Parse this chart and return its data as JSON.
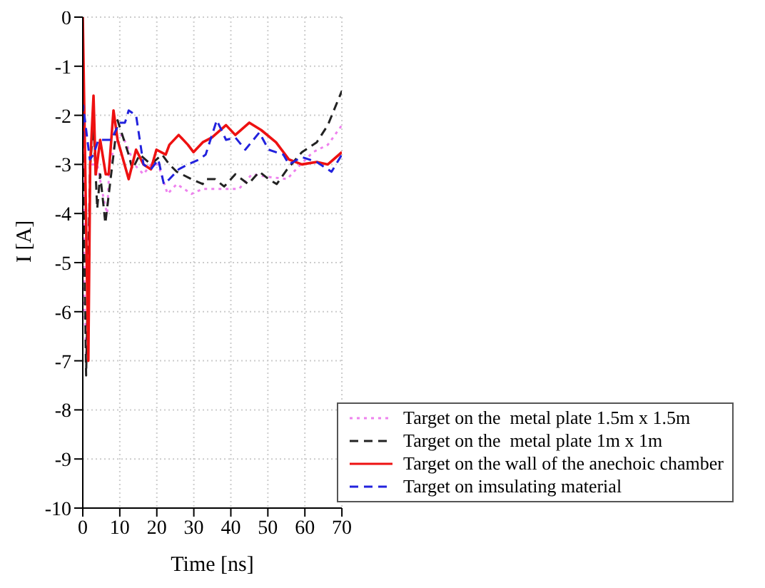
{
  "chart_data": {
    "type": "line",
    "xlabel": "Time [ns]",
    "ylabel": "I [A]",
    "xlim": [
      0,
      70
    ],
    "xticks": [
      0,
      10,
      20,
      30,
      40,
      50,
      60,
      70
    ],
    "ylim": [
      -10,
      0
    ],
    "yticks": [
      -10,
      -9,
      -8,
      -7,
      -6,
      -5,
      -4,
      -3,
      -2,
      -1,
      0
    ],
    "grid": true,
    "legend": "bottom right",
    "marker": "none",
    "series": [
      {
        "name": "Target on the  metal plate 1.5m x 1.5m",
        "color": "#ee82ee",
        "line_style": "dotted",
        "x": [
          0,
          0.5,
          1,
          2,
          3.9,
          5.9,
          6.6,
          7.2,
          8.7,
          10.4,
          11.9,
          13.9,
          16.4,
          18.4,
          20.4,
          22.9,
          25.4,
          29.4,
          32.4,
          34.9,
          36.2,
          42.2,
          45.7,
          49.7,
          55.2,
          58.2,
          62.2,
          66.2,
          70
        ],
        "values": [
          -1,
          -6,
          -7,
          -3,
          -3,
          -3.8,
          -4,
          -3,
          -2.6,
          -2.4,
          -2.6,
          -3,
          -3.2,
          -3,
          -3,
          -3.6,
          -3.4,
          -3.6,
          -3.5,
          -3.5,
          -3.5,
          -3.5,
          -3.2,
          -3.25,
          -3.3,
          -3.05,
          -2.75,
          -2.6,
          -2.2
        ]
      },
      {
        "name": "Target on the  metal plate 1m x 1m",
        "color": "#222222",
        "line_style": "dashed",
        "x": [
          0,
          0.9,
          2,
          2.9,
          3.9,
          4.7,
          6.1,
          7.2,
          9.4,
          12.4,
          13.4,
          15.4,
          18.4,
          21.4,
          23.4,
          25.4,
          29.4,
          32.4,
          33.2,
          35.7,
          38.2,
          41.2,
          44.7,
          47.7,
          50.2,
          52.4,
          55.2,
          59.2,
          63.2,
          66.2,
          70
        ],
        "values": [
          -2.5,
          -7.3,
          -3,
          -2.2,
          -3.9,
          -3.2,
          -4.2,
          -3.5,
          -2.1,
          -2.8,
          -3.1,
          -2.8,
          -3,
          -2.8,
          -3,
          -3.15,
          -3.3,
          -3.4,
          -3.3,
          -3.3,
          -3.45,
          -3.2,
          -3.4,
          -3.15,
          -3.3,
          -3.4,
          -3.1,
          -2.75,
          -2.55,
          -2.2,
          -1.5
        ]
      },
      {
        "name": "Target on the wall of the anechoic chamber",
        "color": "#ee1111",
        "line_style": "solid",
        "x": [
          0,
          1.5,
          2,
          2.9,
          3.5,
          4.7,
          6.2,
          7,
          8.3,
          9.4,
          12.4,
          14.4,
          16.4,
          18.4,
          19.9,
          22.4,
          23.4,
          25.9,
          28.4,
          29.9,
          32.4,
          34.9,
          38.7,
          41.2,
          45,
          48.2,
          52.2,
          55.7,
          59.2,
          63.2,
          66.2,
          70
        ],
        "values": [
          0,
          -7,
          -3,
          -1.6,
          -3.2,
          -2.5,
          -3.2,
          -3.2,
          -1.9,
          -2.5,
          -3.3,
          -2.7,
          -3,
          -3.1,
          -2.7,
          -2.8,
          -2.6,
          -2.4,
          -2.6,
          -2.75,
          -2.55,
          -2.45,
          -2.2,
          -2.4,
          -2.15,
          -2.3,
          -2.55,
          -2.9,
          -3,
          -2.95,
          -3,
          -2.75
        ]
      },
      {
        "name": "Target on imsulating material",
        "color": "#2222dd",
        "line_style": "dashed",
        "x": [
          0,
          0.1,
          1.9,
          2.9,
          4.2,
          6.2,
          7.7,
          9.9,
          11.4,
          12.4,
          14.4,
          16.4,
          18.4,
          20.4,
          21.9,
          23.4,
          25.9,
          28.4,
          31.4,
          33.2,
          36.2,
          38.7,
          41.2,
          43.9,
          47.7,
          50.2,
          54.2,
          55.7,
          59.2,
          63.2,
          67.2,
          70
        ],
        "values": [
          -2.5,
          -1.8,
          -2.9,
          -2.8,
          -2.5,
          -2.5,
          -2.5,
          -2.15,
          -2.15,
          -1.9,
          -2,
          -3,
          -3.1,
          -2.9,
          -3.4,
          -3.3,
          -3.1,
          -3,
          -2.9,
          -2.8,
          -2.1,
          -2.5,
          -2.45,
          -2.7,
          -2.35,
          -2.7,
          -2.8,
          -3,
          -2.85,
          -2.95,
          -3.15,
          -2.8
        ]
      }
    ]
  }
}
